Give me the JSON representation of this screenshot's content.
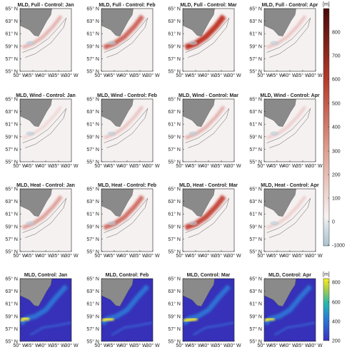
{
  "panels": [
    [
      "MLD, Full - Control: Jan",
      "MLD, Full - Control: Feb",
      "MLD, Full - Control: Mar",
      "MLD, Full - Control: Apr"
    ],
    [
      "MLD, Wind - Control: Jan",
      "MLD, Wind - Control: Feb",
      "MLD, Wind - Control: Mar",
      "MLD, Wind - Control: Apr"
    ],
    [
      "MLD, Heat - Control: Jan",
      "MLD, Heat - Control: Feb",
      "MLD, Heat - Control: Mar",
      "MLD, Heat - Control: Apr"
    ],
    [
      "MLD, Control: Jan",
      "MLD, Control: Feb",
      "MLD, Control: Mar",
      "MLD, Control: Apr"
    ]
  ],
  "lat_ticks": [
    "55° N",
    "57° N",
    "59° N",
    "61° N",
    "63° N",
    "65° N"
  ],
  "lon_ticks": [
    "50° W",
    "45° W",
    "40° W",
    "35° W",
    "30° W"
  ],
  "colorbar_top": {
    "unit": "[m]",
    "ticks": [
      "-1000",
      "0",
      "100",
      "200",
      "300",
      "400",
      "500",
      "600",
      "700",
      "800"
    ]
  },
  "colorbar_bottom": {
    "unit": "[m]",
    "ticks": [
      "200",
      "400",
      "600",
      "800"
    ]
  }
}
